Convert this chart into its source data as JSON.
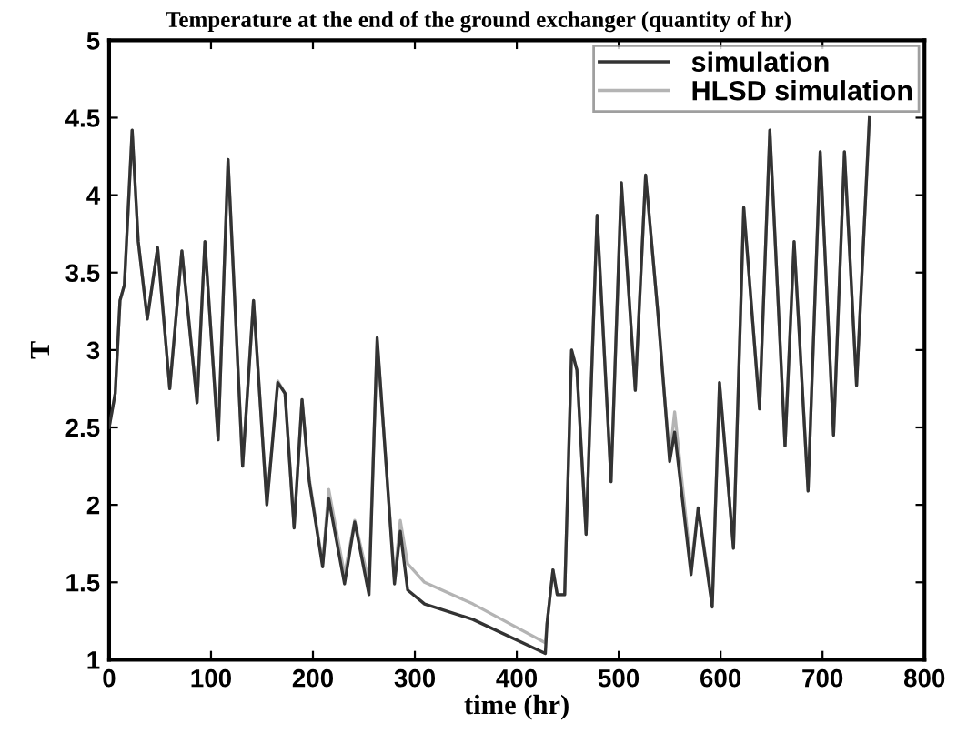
{
  "chart_data": {
    "type": "line",
    "title": "Temperature at the end of the ground exchanger (quantity of hr)",
    "xlabel": "time (hr)",
    "ylabel": "T",
    "x": [
      0,
      6,
      10.7,
      15,
      22.6,
      28.6,
      37.5,
      47.6,
      59.5,
      71.4,
      86.3,
      94,
      107,
      116.7,
      131,
      141.7,
      154.8,
      165.5,
      172.6,
      181.5,
      189.3,
      196.4,
      209.5,
      215.5,
      231,
      241,
      255,
      263,
      280,
      285.7,
      292.9,
      309.5,
      357,
      428,
      429.6,
      435.5,
      439.7,
      447,
      453.8,
      459,
      468,
      478.8,
      492.5,
      502.6,
      516.3,
      526.4,
      538.3,
      550,
      554.9,
      571,
      578,
      591.8,
      598.9,
      612.6,
      622.7,
      638.2,
      648.3,
      663.2,
      672.1,
      685.8,
      697.7,
      710.8,
      721.5,
      733.4,
      746
    ],
    "series": [
      {
        "name": "simulation",
        "color": "#333333",
        "values": [
          2.5,
          2.72,
          3.32,
          3.42,
          4.42,
          3.7,
          3.2,
          3.66,
          2.75,
          3.64,
          2.66,
          3.7,
          2.42,
          4.23,
          2.25,
          3.32,
          2.0,
          2.79,
          2.72,
          1.85,
          2.68,
          2.15,
          1.6,
          2.04,
          1.49,
          1.89,
          1.42,
          3.08,
          1.49,
          1.83,
          1.45,
          1.36,
          1.26,
          1.04,
          1.23,
          1.58,
          1.42,
          1.42,
          3.0,
          2.87,
          1.81,
          3.87,
          2.15,
          4.08,
          2.74,
          4.13,
          3.25,
          2.28,
          2.47,
          1.55,
          1.98,
          1.34,
          2.79,
          1.72,
          3.92,
          2.62,
          4.42,
          2.38,
          3.7,
          2.09,
          4.28,
          2.45,
          4.28,
          2.77,
          4.5
        ]
      },
      {
        "name": "HLSD simulation",
        "color": "#b4b4b4",
        "values": [
          2.5,
          2.72,
          3.32,
          3.42,
          4.42,
          3.7,
          3.2,
          3.66,
          2.75,
          3.64,
          2.66,
          3.7,
          2.42,
          4.23,
          2.25,
          3.32,
          2.0,
          2.8,
          2.72,
          1.86,
          2.68,
          2.17,
          1.62,
          2.1,
          1.55,
          1.9,
          1.5,
          3.06,
          1.52,
          1.9,
          1.62,
          1.5,
          1.36,
          1.11,
          1.23,
          1.58,
          1.42,
          1.42,
          3.0,
          2.87,
          1.81,
          3.87,
          2.15,
          4.08,
          2.74,
          4.13,
          3.25,
          2.3,
          2.6,
          1.6,
          1.98,
          1.38,
          2.79,
          1.72,
          3.92,
          2.62,
          4.42,
          2.38,
          3.7,
          2.09,
          4.28,
          2.45,
          4.28,
          2.77,
          4.5
        ]
      }
    ],
    "xlim": [
      0,
      800
    ],
    "xticks": [
      0,
      100,
      200,
      300,
      400,
      500,
      600,
      700,
      800
    ],
    "ylim": [
      1,
      5
    ],
    "yticks": [
      1,
      1.5,
      2,
      2.5,
      3,
      3.5,
      4,
      4.5,
      5
    ],
    "legend": "top right",
    "grid": false
  }
}
